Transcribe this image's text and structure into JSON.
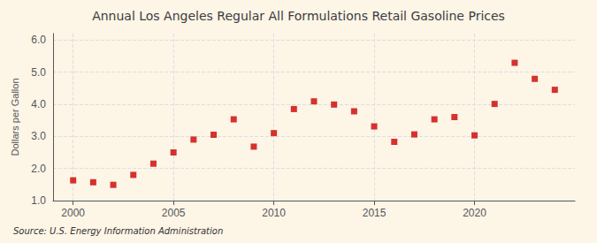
{
  "chart_data": {
    "type": "scatter",
    "title": "Annual Los Angeles Regular All Formulations Retail Gasoline Prices",
    "ylabel": "Dollars per Gallon",
    "annotations": [
      "Source: U.S. Energy Information Administration"
    ],
    "x": [
      2000,
      2001,
      2002,
      2003,
      2004,
      2005,
      2006,
      2007,
      2008,
      2009,
      2010,
      2011,
      2012,
      2013,
      2014,
      2015,
      2016,
      2017,
      2018,
      2019,
      2020,
      2021,
      2022,
      2023,
      2024
    ],
    "values": [
      1.63,
      1.57,
      1.49,
      1.8,
      2.15,
      2.5,
      2.9,
      3.05,
      3.53,
      2.68,
      3.1,
      3.85,
      4.09,
      3.99,
      3.78,
      3.31,
      2.83,
      3.06,
      3.53,
      3.6,
      3.03,
      4.01,
      5.29,
      4.79,
      4.45
    ],
    "color": "#cc0000",
    "marker": "square",
    "xlim": [
      1999,
      2025
    ],
    "xticks": [
      2000,
      2005,
      2010,
      2015,
      2020
    ],
    "ylim": [
      1.0,
      6.2
    ],
    "yticks": [
      {
        "value": 1.0,
        "label": "1.0"
      },
      {
        "value": 2.0,
        "label": "2.0"
      },
      {
        "value": 3.0,
        "label": "3.0"
      },
      {
        "value": 4.0,
        "label": "4.0"
      },
      {
        "value": 5.0,
        "label": "5.0"
      },
      {
        "value": 6.0,
        "label": "6.0"
      }
    ],
    "grid": true
  }
}
